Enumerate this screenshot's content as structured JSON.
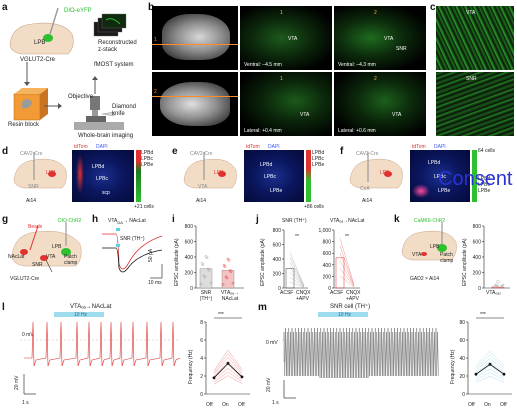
{
  "panels": {
    "a": {
      "letter": "a",
      "virus": "DIO-eYFP",
      "region": "LPB",
      "mouse": "VGLUT2-Cre",
      "resin": "Resin block",
      "recon": "Reconstructed\nz-stack",
      "fmost": "fMOST system",
      "objective": "Objective",
      "knife": "Diamond\nknife",
      "wbi": "Whole-brain imaging"
    },
    "b": {
      "letter": "b",
      "num1": "1",
      "num2": "2",
      "vta": "VTA",
      "snr": "SNR",
      "ventral1": "Ventral: –4.5 mm",
      "ventral2": "Ventral: –4.3 mm",
      "lateral1": "Lateral: +0.4 mm",
      "lateral2": "Lateral: +0.6 mm"
    },
    "c": {
      "letter": "c",
      "vta": "VTA",
      "snr": "SNR"
    },
    "d": {
      "letter": "d",
      "virus": "CAV2-Cre",
      "stain1": "tdTom",
      "stain2": "DAPI",
      "target": "LPB",
      "site": "SNR",
      "mouse": "Ai14",
      "legend": [
        "LPBd",
        "LPBc",
        "LPBe"
      ],
      "scale_bot": "+21 cells",
      "sub": [
        "LPBd",
        "LPBc",
        "LPBe",
        "scp"
      ]
    },
    "e": {
      "letter": "e",
      "virus": "CAV2-Cre",
      "stain1": "tdTom",
      "stain2": "DAPI",
      "target": "LPB",
      "site": "VTA",
      "mouse": "Ai14",
      "legend": [
        "LPBd",
        "LPBc",
        "LPBe"
      ],
      "scale_bot": "+86 cells",
      "sub": [
        "LPBd",
        "LPBc",
        "LPBe"
      ]
    },
    "f": {
      "letter": "f",
      "virus": "CAV2-Cre",
      "stain1": "tdTom",
      "stain2": "DAPI",
      "target": "LPB",
      "site": "CeA",
      "mouse": "Ai14",
      "legend": [
        "LPBd",
        "LPBc",
        "LPBe"
      ],
      "scale_top": "64 cells",
      "sub": [
        "LPBd",
        "LPBc",
        "LPBe"
      ]
    },
    "g": {
      "letter": "g",
      "virus": "DIO-ChR2",
      "beads": "Beads",
      "region": "LPB",
      "nacl": "NAcLat",
      "snr": "SNR",
      "vta": "VTA",
      "patch": "Patch\nclamp",
      "mouse": "VGLUT2-Cre"
    },
    "h": {
      "letter": "h",
      "title1": "VTA",
      "title1_sub": "DA",
      "title1_tail": "→ NAcLat",
      "title2": "SNR (TH⁺)",
      "scale_y": "50 pA",
      "scale_x": "10 ms"
    },
    "i": {
      "letter": "i",
      "ylabel": "EPSC amplitude (pA)",
      "yticks": [
        "0",
        "200",
        "400",
        "600",
        "800"
      ],
      "xcats": [
        "SNR\n(TH⁺)",
        "VTAₒₐ→\nNAcLat"
      ]
    },
    "j": {
      "letter": "j",
      "title_left": "SNR (TH⁺)",
      "title_right": "VTAₒₐ→NAcLat",
      "ylabel": "EPSC amplitude (pA)",
      "yticks_left": [
        "0",
        "200",
        "400",
        "600",
        "800"
      ],
      "yticks_right": [
        "0",
        "200",
        "400",
        "600",
        "800",
        "1,000"
      ],
      "xcats": [
        "ACSF",
        "CNQX\n+APV"
      ],
      "sig": "**"
    },
    "k": {
      "letter": "k",
      "virus": "CaMKII-ChR2",
      "region": "LPB",
      "site": "VTA",
      "patch": "Patch\nclamp",
      "mouse": "GAD2 × Ai14",
      "ylabel": "EPSC amplitude (pA)",
      "yticks": [
        "0",
        "200",
        "400",
        "600",
        "800"
      ],
      "xcat": "VTAₒₐ₂"
    },
    "l": {
      "letter": "l",
      "title": "VTAₒₐ→NAcLat",
      "stim": "10 Hz",
      "zero": "0 mV",
      "scale_y": "20 mV",
      "scale_x": "1 s",
      "ylabel": "Frequency (Hz)",
      "yticks": [
        "0",
        "2",
        "4",
        "6",
        "8"
      ],
      "xcats": [
        "Off",
        "On",
        "Off"
      ],
      "sig": "***"
    },
    "m": {
      "letter": "m",
      "title": "SNR cell (TH⁺)",
      "stim": "10 Hz",
      "zero": "0 mV",
      "scale_y": "20 mV",
      "scale_x": "1 s",
      "ylabel": "Frequency (Hz)",
      "yticks": [
        "0",
        "20",
        "40",
        "60",
        "80"
      ],
      "xcats": [
        "Off",
        "On",
        "Off"
      ],
      "sig": "***"
    }
  },
  "chart_data": [
    {
      "type": "bar",
      "panel": "i",
      "categories": [
        "SNR (TH+)",
        "VTA DA→NAcLat"
      ],
      "values": [
        250,
        230
      ],
      "ylim": [
        0,
        800
      ],
      "ylabel": "EPSC amplitude (pA)"
    },
    {
      "type": "line",
      "panel": "j-left",
      "categories": [
        "ACSF",
        "CNQX+APV"
      ],
      "values": [
        270,
        20
      ],
      "ylim": [
        0,
        800
      ],
      "ylabel": "EPSC amplitude (pA)",
      "title": "SNR (TH⁺)"
    },
    {
      "type": "line",
      "panel": "j-right",
      "categories": [
        "ACSF",
        "CNQX+APV"
      ],
      "values": [
        520,
        30
      ],
      "ylim": [
        0,
        1000
      ],
      "title": "VTAₒₐ→NAcLat"
    },
    {
      "type": "bar",
      "panel": "k",
      "categories": [
        "VTA GAD2"
      ],
      "values": [
        10
      ],
      "ylim": [
        0,
        800
      ],
      "ylabel": "EPSC amplitude (pA)"
    },
    {
      "type": "line",
      "panel": "l",
      "categories": [
        "Off",
        "On",
        "Off"
      ],
      "values": [
        1.8,
        3.4,
        1.9
      ],
      "ylim": [
        0,
        8
      ],
      "ylabel": "Frequency (Hz)"
    },
    {
      "type": "line",
      "panel": "m",
      "categories": [
        "Off",
        "On",
        "Off"
      ],
      "values": [
        22,
        33,
        22
      ],
      "ylim": [
        0,
        80
      ],
      "ylabel": "Frequency (Hz)"
    }
  ],
  "overlay": {
    "consent": "Consent"
  },
  "colors": {
    "green": "#2ec02e",
    "red": "#e03030",
    "blue": "#1b2f8f",
    "cyan": "#5bd0e8",
    "brain": "#f2dcc6"
  }
}
